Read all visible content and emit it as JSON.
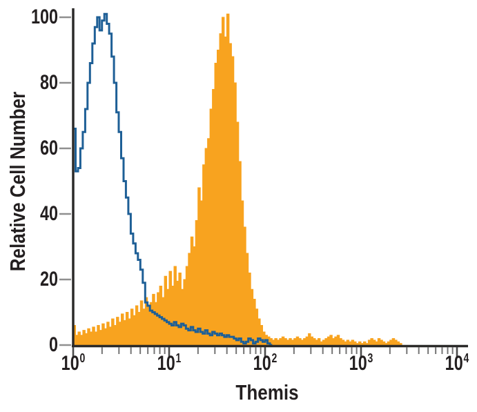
{
  "page": {
    "background": "#ffffff"
  },
  "chart_data": {
    "type": "area",
    "subtype": "flow-cytometry-overlay-histogram",
    "title": "",
    "xlabel": "Themis",
    "ylabel": "Relative Cell Number",
    "x_scale": "log10",
    "x_range_exponents": [
      0,
      4
    ],
    "x_tick_base": 10,
    "x_tick_exponents": [
      0,
      1,
      2,
      3,
      4
    ],
    "x_minor_ticks_per_decade": [
      2,
      3,
      4,
      5,
      6,
      7,
      8,
      9
    ],
    "y_ticks": [
      0,
      20,
      40,
      60,
      80,
      100
    ],
    "ylim": [
      0,
      105
    ],
    "grid": false,
    "legend": "none",
    "bin_log_width": 0.025,
    "axis_color": "#2b2a29",
    "y_tick_color": "#8f8f8f",
    "x_major_tick_color": "#4c4c4c",
    "x_minor_tick_color": "#747474",
    "label_color": "#231f20",
    "series": [
      {
        "name": "stained-filled-histogram",
        "style": "filled",
        "color": "#F8A31F",
        "log_start": 0,
        "values": [
          6,
          3,
          4,
          3,
          4.5,
          3.5,
          5,
          4,
          5.5,
          4,
          6,
          4.5,
          6.5,
          5,
          7,
          5.5,
          8,
          6,
          8.5,
          7,
          9.5,
          7.5,
          10,
          8,
          11,
          9,
          12,
          10,
          13.5,
          11,
          14.5,
          12,
          13,
          15.5,
          13,
          16,
          18,
          14.5,
          21,
          17,
          22.5,
          18,
          24,
          19.5,
          22,
          17,
          20,
          24,
          28,
          33,
          30,
          38,
          48,
          44,
          55,
          60,
          63,
          72,
          78,
          86,
          90,
          95,
          100,
          94,
          101,
          92,
          88,
          80,
          68,
          56,
          44,
          36,
          28,
          22,
          17,
          14,
          11,
          8,
          6,
          4,
          3,
          2.5,
          2,
          1.5,
          2,
          1.5,
          2,
          2.5,
          2,
          1.5,
          2,
          1.5,
          2,
          2.5,
          2,
          1.5,
          2,
          2.5,
          3.5,
          2.5,
          2,
          1.5,
          2,
          1,
          1.5,
          2,
          2.5,
          3,
          2,
          2.5,
          3,
          2,
          1.5,
          1,
          1.5,
          1,
          1.5,
          1,
          0.5,
          1,
          0.5,
          1,
          0.5,
          1.5,
          2,
          1.5,
          1,
          2,
          1.5,
          1,
          0.5,
          1,
          1.5,
          2,
          1.5,
          1,
          0.5
        ]
      },
      {
        "name": "control-open-histogram",
        "style": "open",
        "color": "#1E5F96",
        "log_start": 0,
        "values": [
          66,
          53,
          54,
          60,
          65,
          72,
          80,
          86,
          92,
          97,
          100,
          96,
          99,
          101,
          98,
          95,
          88,
          80,
          71,
          65,
          57,
          50,
          45,
          40,
          34,
          31,
          28,
          26,
          23,
          19,
          13,
          12,
          10.5,
          10,
          9.5,
          9,
          8.5,
          8,
          7.5,
          7,
          6.5,
          6,
          7,
          6,
          5.5,
          6.5,
          6,
          5,
          4.5,
          5.5,
          4.5,
          4,
          5,
          4,
          3.5,
          4.5,
          3.5,
          3,
          4,
          3.5,
          3,
          3.5,
          3,
          2.5,
          3,
          2.5,
          2.5,
          2,
          1.5,
          2,
          1,
          0.5,
          1,
          2,
          1.5,
          0.5,
          1,
          2,
          1.5,
          1,
          1.5,
          0.5,
          0
        ]
      }
    ]
  }
}
